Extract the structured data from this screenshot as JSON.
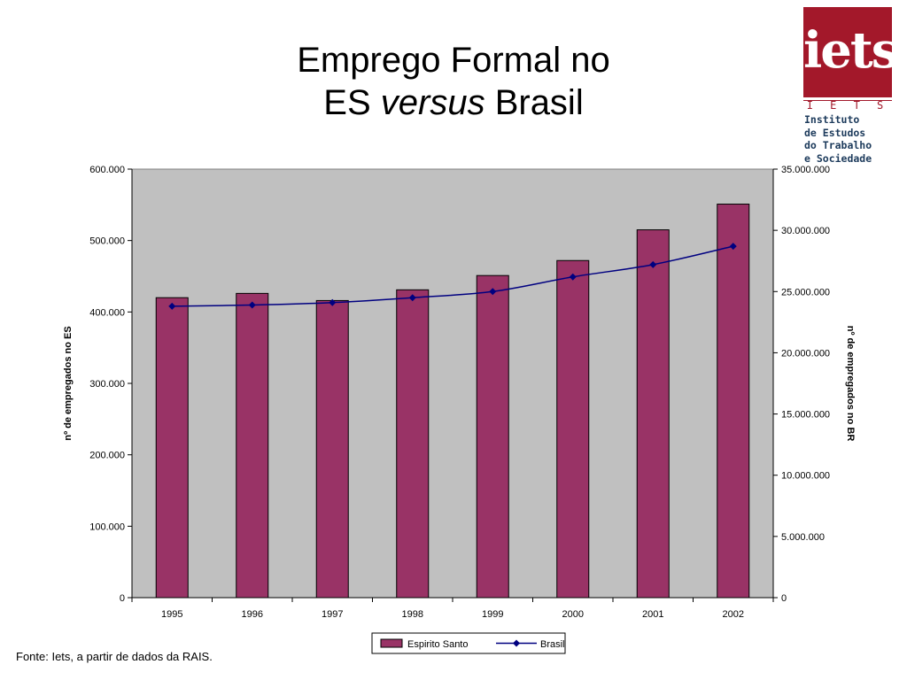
{
  "title": {
    "line1": "Emprego Formal no",
    "line2_pre": "ES",
    "line2_italic": "versus",
    "line2_post": "Brasil"
  },
  "logo": {
    "letters": "iets",
    "abbr": "I E T S",
    "name_lines": [
      "Instituto",
      "de Estudos",
      "do Trabalho",
      "e Sociedade"
    ],
    "color": "#a3182a",
    "text_color": "#1d3b5c"
  },
  "source": "Fonte: Iets, a partir de dados da RAIS.",
  "chart_data": {
    "type": "bar",
    "categories": [
      "1995",
      "1996",
      "1997",
      "1998",
      "1999",
      "2000",
      "2001",
      "2002"
    ],
    "series": [
      {
        "name": "Espirito Santo",
        "kind": "bar",
        "axis": "left",
        "color": "#993366",
        "values": [
          420000,
          426000,
          416000,
          431000,
          451000,
          472000,
          515000,
          551000
        ]
      },
      {
        "name": "Brasil",
        "kind": "line",
        "axis": "right",
        "color": "#000080",
        "values": [
          23800000,
          23900000,
          24100000,
          24500000,
          25000000,
          26200000,
          27200000,
          28700000
        ]
      }
    ],
    "ylabel": "nº de empregados no ES",
    "y2label": "nº de empregados no BR",
    "ylim": [
      0,
      600000
    ],
    "y2lim": [
      0,
      35000000
    ],
    "yticks": [
      "0",
      "100.000",
      "200.000",
      "300.000",
      "400.000",
      "500.000",
      "600.000"
    ],
    "y2ticks": [
      "0",
      "5.000.000",
      "10.000.000",
      "15.000.000",
      "20.000.000",
      "25.000.000",
      "30.000.000",
      "35.000.000"
    ],
    "plot_background": "#c0c0c0",
    "grid": false,
    "legend": "bottom-center"
  }
}
